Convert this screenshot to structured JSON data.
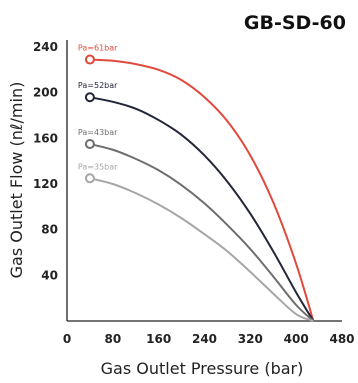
{
  "chart_data": {
    "type": "line",
    "title": "GB-SD-60",
    "xlabel": "Gas Outlet Pressure (bar)",
    "ylabel": "Gas Outlet Flow (nℓ/min)",
    "xlim": [
      0,
      480
    ],
    "ylim": [
      0,
      240
    ],
    "xticks": [
      "0",
      "80",
      "160",
      "240",
      "320",
      "400",
      "480"
    ],
    "yticks": [
      "40",
      "80",
      "120",
      "160",
      "200",
      "240"
    ],
    "grid": false,
    "series": [
      {
        "name": "Pa=61bar",
        "color": "#e04a3c",
        "x": [
          40,
          80,
          120,
          160,
          200,
          240,
          280,
          320,
          360,
          400,
          430
        ],
        "y": [
          229,
          228,
          225,
          220,
          211,
          196,
          175,
          145,
          104,
          50,
          0
        ]
      },
      {
        "name": "Pa=52bar",
        "color": "#23263a",
        "x": [
          40,
          80,
          120,
          160,
          200,
          240,
          280,
          320,
          360,
          400,
          430
        ],
        "y": [
          196,
          192,
          186,
          176,
          163,
          145,
          122,
          94,
          61,
          25,
          0
        ]
      },
      {
        "name": "Pa=43bar",
        "color": "#6e6e6e",
        "x": [
          40,
          80,
          120,
          160,
          200,
          240,
          280,
          320,
          360,
          400,
          430
        ],
        "y": [
          155,
          150,
          142,
          132,
          119,
          103,
          84,
          63,
          39,
          14,
          0
        ]
      },
      {
        "name": "Pa=35bar",
        "color": "#a6a6a6",
        "x": [
          40,
          80,
          120,
          160,
          200,
          240,
          280,
          320,
          360,
          400,
          430
        ],
        "y": [
          125,
          120,
          112,
          102,
          90,
          76,
          61,
          43,
          24,
          6,
          0
        ]
      }
    ]
  }
}
